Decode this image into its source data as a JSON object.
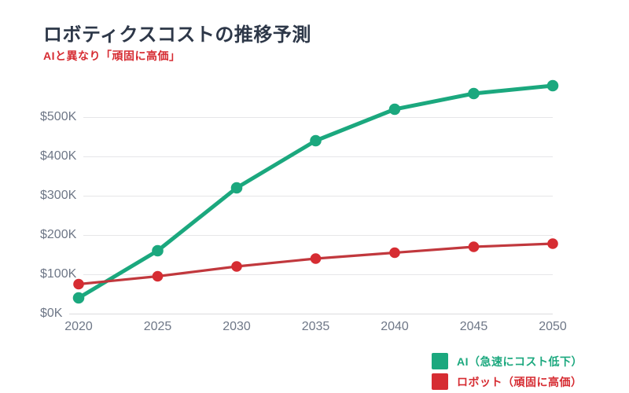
{
  "title": "ロボティクスコストの推移予測",
  "subtitle": "AIと異なり「頑固に高価」",
  "colors": {
    "background": "#ffffff",
    "title": "#2d3748",
    "axis_label": "#6e7787",
    "gridline": "#e6e6e8",
    "axisline": "#dcdcde",
    "green": "#1ba87e",
    "red": "#d62c32",
    "red_line": "#c1383d"
  },
  "chart_data": {
    "type": "line",
    "x": [
      2020,
      2025,
      2030,
      2035,
      2040,
      2045,
      2050
    ],
    "series": [
      {
        "name": "AI（急速にコスト低下）",
        "color_key": "green",
        "values": [
          40,
          160,
          320,
          440,
          520,
          560,
          580
        ]
      },
      {
        "name": "ロボット（頑固に高価）",
        "color_key": "red",
        "values": [
          75,
          95,
          120,
          140,
          155,
          170,
          178
        ]
      }
    ],
    "title": "ロボティクスコストの推移予測",
    "subtitle": "AIと異なり「頑固に高価」",
    "xlabel": "",
    "ylabel": "",
    "y_ticks": [
      {
        "value": 0,
        "label": "$0K"
      },
      {
        "value": 100,
        "label": "$100K"
      },
      {
        "value": 200,
        "label": "$200K"
      },
      {
        "value": 300,
        "label": "$300K"
      },
      {
        "value": 400,
        "label": "$400K"
      },
      {
        "value": 500,
        "label": "$500K"
      }
    ],
    "ylim": [
      0,
      600
    ],
    "grid": true,
    "legend_position": "bottom-right"
  },
  "legend": {
    "items": [
      {
        "label": "AI（急速にコスト低下）",
        "color_key": "green"
      },
      {
        "label": "ロボット（頑固に高価）",
        "color_key": "red"
      }
    ]
  }
}
